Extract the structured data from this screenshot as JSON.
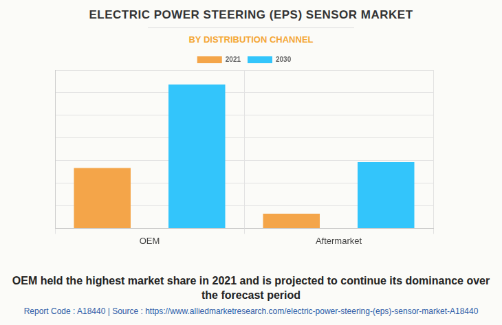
{
  "chart_data": {
    "type": "bar",
    "title": "ELECTRIC POWER STEERING (EPS) SENSOR MARKET",
    "subtitle": "BY DISTRIBUTION CHANNEL",
    "caption": "OEM held the highest market share in 2021 and is projected to continue its dominance over the forecast period",
    "source": "Report Code : A18440  |  Source : https://www.alliedmarketresearch.com/electric-power-steering-(eps)-sensor-market-A18440",
    "categories": [
      "OEM",
      "Aftermarket"
    ],
    "series": [
      {
        "name": "2021",
        "color": "#f4a549",
        "values": [
          2.67,
          0.65
        ]
      },
      {
        "name": "2030",
        "color": "#33c5fb",
        "values": [
          6.36,
          2.93
        ]
      }
    ],
    "ylim": [
      0,
      7
    ],
    "yticks": [
      0,
      1,
      2,
      3,
      4,
      5,
      6,
      7
    ],
    "grid": true,
    "legend": "top",
    "tick_labels": "x"
  }
}
